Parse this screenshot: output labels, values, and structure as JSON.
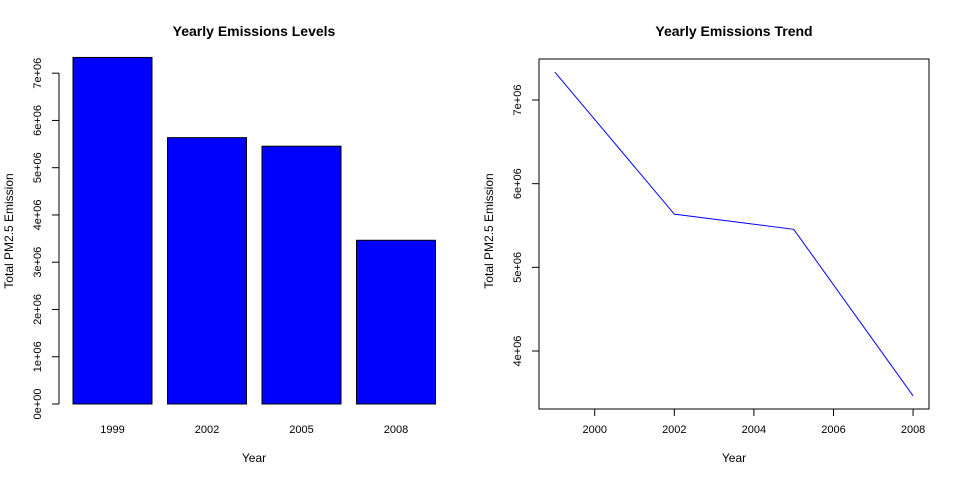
{
  "chart_data": [
    {
      "type": "bar",
      "title": "Yearly Emissions Levels",
      "xlabel": "Year",
      "ylabel": "Total PM2.5 Emission",
      "categories": [
        "1999",
        "2002",
        "2005",
        "2008"
      ],
      "values": [
        7332967,
        5635780,
        5454703,
        3464206
      ],
      "ylim": [
        0,
        7300000
      ],
      "y_ticks": [
        0,
        1000000,
        2000000,
        3000000,
        4000000,
        5000000,
        6000000,
        7000000
      ],
      "y_tick_labels": [
        "0e+00",
        "1e+06",
        "2e+06",
        "3e+06",
        "4e+06",
        "5e+06",
        "6e+06",
        "7e+06"
      ],
      "bar_color": "#0000FF",
      "grid": false
    },
    {
      "type": "line",
      "title": "Yearly Emissions Trend",
      "xlabel": "Year",
      "ylabel": "Total PM2.5 Emission",
      "x": [
        1999,
        2002,
        2005,
        2008
      ],
      "y": [
        7332967,
        5635780,
        5454703,
        3464206
      ],
      "xlim": [
        1998.6,
        2008.4
      ],
      "ylim": [
        3307000,
        7490000
      ],
      "x_ticks": [
        2000,
        2002,
        2004,
        2006,
        2008
      ],
      "x_tick_labels": [
        "2000",
        "2002",
        "2004",
        "2006",
        "2008"
      ],
      "y_ticks": [
        4000000,
        5000000,
        6000000,
        7000000
      ],
      "y_tick_labels": [
        "4e+06",
        "5e+06",
        "6e+06",
        "7e+06"
      ],
      "line_color": "#0000FF",
      "grid": false
    }
  ]
}
